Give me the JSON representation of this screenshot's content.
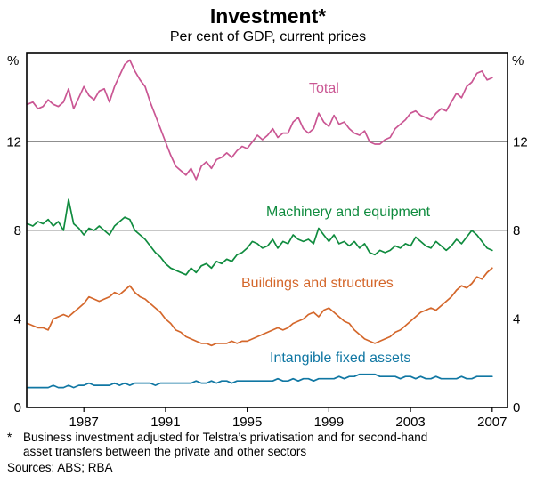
{
  "chart_data": {
    "type": "line",
    "title": "Investment*",
    "subtitle": "Per cent of GDP, current prices",
    "unit_left": "%",
    "unit_right": "%",
    "xlabel": "",
    "ylabel": "Per cent of GDP",
    "grid": "horizontal",
    "xlim": [
      1984.2,
      2007.75
    ],
    "ylim": [
      0,
      16
    ],
    "y_ticks": [
      0,
      4,
      8,
      12
    ],
    "x_ticks": [
      1987,
      1991,
      1995,
      1999,
      2003,
      2007
    ],
    "x_start": 1984.25,
    "x_step": 0.25,
    "series": [
      {
        "name": "Total",
        "color": "#ca5693",
        "values": [
          13.7,
          13.8,
          13.5,
          13.6,
          13.9,
          13.7,
          13.6,
          13.8,
          14.4,
          13.5,
          14.0,
          14.5,
          14.1,
          13.9,
          14.3,
          14.4,
          13.8,
          14.5,
          15.0,
          15.5,
          15.7,
          15.2,
          14.8,
          14.5,
          13.8,
          13.2,
          12.6,
          12.0,
          11.4,
          10.9,
          10.7,
          10.5,
          10.8,
          10.3,
          10.9,
          11.1,
          10.8,
          11.2,
          11.3,
          11.5,
          11.3,
          11.6,
          11.8,
          11.7,
          12.0,
          12.3,
          12.1,
          12.3,
          12.6,
          12.2,
          12.4,
          12.4,
          12.9,
          13.1,
          12.6,
          12.4,
          12.6,
          13.3,
          12.9,
          12.7,
          13.2,
          12.8,
          12.9,
          12.6,
          12.4,
          12.3,
          12.5,
          12.0,
          11.9,
          11.9,
          12.1,
          12.2,
          12.6,
          12.8,
          13.0,
          13.3,
          13.4,
          13.2,
          13.1,
          13.0,
          13.3,
          13.5,
          13.4,
          13.8,
          14.2,
          14.0,
          14.5,
          14.7,
          15.1,
          15.2,
          14.8,
          14.9
        ]
      },
      {
        "name": "Machinery and equipment",
        "color": "#0f8b3e",
        "values": [
          8.3,
          8.2,
          8.4,
          8.3,
          8.5,
          8.2,
          8.4,
          8.0,
          9.4,
          8.3,
          8.1,
          7.8,
          8.1,
          8.0,
          8.2,
          8.0,
          7.8,
          8.2,
          8.4,
          8.6,
          8.5,
          8.0,
          7.8,
          7.6,
          7.3,
          7.0,
          6.8,
          6.5,
          6.3,
          6.2,
          6.1,
          6.0,
          6.3,
          6.1,
          6.4,
          6.5,
          6.3,
          6.6,
          6.5,
          6.7,
          6.6,
          6.9,
          7.0,
          7.2,
          7.5,
          7.4,
          7.2,
          7.3,
          7.6,
          7.2,
          7.5,
          7.4,
          7.8,
          7.6,
          7.5,
          7.6,
          7.4,
          8.1,
          7.8,
          7.5,
          7.8,
          7.4,
          7.5,
          7.3,
          7.5,
          7.2,
          7.4,
          7.0,
          6.9,
          7.1,
          7.0,
          7.1,
          7.3,
          7.2,
          7.4,
          7.3,
          7.7,
          7.5,
          7.3,
          7.2,
          7.5,
          7.3,
          7.1,
          7.3,
          7.6,
          7.4,
          7.7,
          8.0,
          7.8,
          7.5,
          7.2,
          7.1
        ]
      },
      {
        "name": "Buildings and structures",
        "color": "#d4672b",
        "values": [
          3.8,
          3.7,
          3.6,
          3.6,
          3.5,
          4.0,
          4.1,
          4.2,
          4.1,
          4.3,
          4.5,
          4.7,
          5.0,
          4.9,
          4.8,
          4.9,
          5.0,
          5.2,
          5.1,
          5.3,
          5.5,
          5.2,
          5.0,
          4.9,
          4.7,
          4.5,
          4.3,
          4.0,
          3.8,
          3.5,
          3.4,
          3.2,
          3.1,
          3.0,
          2.9,
          2.9,
          2.8,
          2.9,
          2.9,
          2.9,
          3.0,
          2.9,
          3.0,
          3.0,
          3.1,
          3.2,
          3.3,
          3.4,
          3.5,
          3.6,
          3.5,
          3.6,
          3.8,
          3.9,
          4.0,
          4.2,
          4.3,
          4.1,
          4.4,
          4.5,
          4.3,
          4.1,
          3.9,
          3.8,
          3.5,
          3.3,
          3.1,
          3.0,
          2.9,
          3.0,
          3.1,
          3.2,
          3.4,
          3.5,
          3.7,
          3.9,
          4.1,
          4.3,
          4.4,
          4.5,
          4.4,
          4.6,
          4.8,
          5.0,
          5.3,
          5.5,
          5.4,
          5.6,
          5.9,
          5.8,
          6.1,
          6.3
        ]
      },
      {
        "name": "Intangible fixed assets",
        "color": "#1077a3",
        "values": [
          0.9,
          0.9,
          0.9,
          0.9,
          0.9,
          1.0,
          0.9,
          0.9,
          1.0,
          0.9,
          1.0,
          1.0,
          1.1,
          1.0,
          1.0,
          1.0,
          1.0,
          1.1,
          1.0,
          1.1,
          1.0,
          1.1,
          1.1,
          1.1,
          1.1,
          1.0,
          1.1,
          1.1,
          1.1,
          1.1,
          1.1,
          1.1,
          1.1,
          1.2,
          1.1,
          1.1,
          1.2,
          1.1,
          1.2,
          1.2,
          1.1,
          1.2,
          1.2,
          1.2,
          1.2,
          1.2,
          1.2,
          1.2,
          1.2,
          1.3,
          1.2,
          1.2,
          1.3,
          1.2,
          1.3,
          1.3,
          1.2,
          1.3,
          1.3,
          1.3,
          1.3,
          1.4,
          1.3,
          1.4,
          1.4,
          1.5,
          1.5,
          1.5,
          1.5,
          1.4,
          1.4,
          1.4,
          1.4,
          1.3,
          1.4,
          1.4,
          1.3,
          1.4,
          1.3,
          1.3,
          1.4,
          1.3,
          1.3,
          1.3,
          1.3,
          1.4,
          1.3,
          1.3,
          1.4,
          1.4,
          1.4,
          1.4
        ]
      }
    ]
  },
  "footnote": {
    "marker": "*",
    "text": "Business investment adjusted for Telstra’s privatisation and for second-hand asset transfers between the private and other sectors",
    "sources": "Sources: ABS; RBA"
  }
}
